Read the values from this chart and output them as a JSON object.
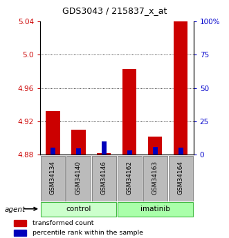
{
  "title": "GDS3043 / 215837_x_at",
  "samples": [
    "GSM34134",
    "GSM34140",
    "GSM34146",
    "GSM34162",
    "GSM34163",
    "GSM34164"
  ],
  "red_values": [
    4.932,
    4.91,
    4.882,
    4.983,
    4.902,
    5.045
  ],
  "blue_values": [
    5.5,
    5.0,
    10.0,
    3.0,
    6.0,
    5.5
  ],
  "ylim_left": [
    4.88,
    5.04
  ],
  "ylim_right": [
    0,
    100
  ],
  "left_ticks": [
    4.88,
    4.92,
    4.96,
    5.0,
    5.04
  ],
  "right_ticks": [
    0,
    25,
    50,
    75,
    100
  ],
  "right_tick_labels": [
    "0",
    "25",
    "50",
    "75",
    "100%"
  ],
  "left_color": "#cc0000",
  "right_color": "#0000cc",
  "control_color": "#ccffcc",
  "imatinib_color": "#aaffaa",
  "sample_box_color": "#bbbbbb",
  "legend_red": "transformed count",
  "legend_blue": "percentile rank within the sample",
  "agent_label": "agent",
  "grid_lines": [
    4.92,
    4.96,
    5.0
  ]
}
